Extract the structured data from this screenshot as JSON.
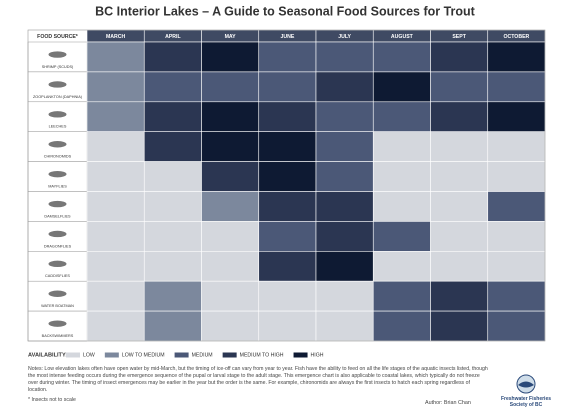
{
  "title": "BC Interior Lakes – A Guide to Seasonal Food Sources for Trout",
  "table": {
    "header": [
      "FOOD SOURCE*",
      "MARCH",
      "APRIL",
      "MAY",
      "JUNE",
      "JULY",
      "AUGUST",
      "SEPT",
      "OCTOBER"
    ],
    "rows": [
      {
        "label": "SHRIMP (SCUDS)",
        "cells": [
          "LOW TO MEDIUM",
          "MEDIUM TO HIGH",
          "HIGH",
          "MEDIUM",
          "MEDIUM",
          "MEDIUM",
          "MEDIUM TO HIGH",
          "HIGH"
        ]
      },
      {
        "label": "ZOOPLANKTON (DAPHNIA)",
        "cells": [
          "LOW TO MEDIUM",
          "MEDIUM",
          "MEDIUM",
          "MEDIUM",
          "MEDIUM TO HIGH",
          "HIGH",
          "MEDIUM",
          "MEDIUM"
        ]
      },
      {
        "label": "LEECHES",
        "cells": [
          "LOW TO MEDIUM",
          "MEDIUM TO HIGH",
          "HIGH",
          "MEDIUM TO HIGH",
          "MEDIUM",
          "MEDIUM",
          "MEDIUM TO HIGH",
          "HIGH"
        ]
      },
      {
        "label": "CHIRONOMIDS",
        "cells": [
          "LOW",
          "MEDIUM TO HIGH",
          "HIGH",
          "HIGH",
          "MEDIUM",
          "LOW",
          "LOW",
          "LOW"
        ]
      },
      {
        "label": "MAYFLIES",
        "cells": [
          "LOW",
          "LOW",
          "MEDIUM TO HIGH",
          "HIGH",
          "MEDIUM",
          "LOW",
          "LOW",
          "LOW"
        ]
      },
      {
        "label": "DAMSELFLIES",
        "cells": [
          "LOW",
          "LOW",
          "LOW TO MEDIUM",
          "MEDIUM TO HIGH",
          "MEDIUM TO HIGH",
          "LOW",
          "LOW",
          "MEDIUM"
        ]
      },
      {
        "label": "DRAGONFLIES",
        "cells": [
          "LOW",
          "LOW",
          "LOW",
          "MEDIUM",
          "MEDIUM TO HIGH",
          "MEDIUM",
          "LOW",
          "LOW"
        ]
      },
      {
        "label": "CADDISFLIES",
        "cells": [
          "LOW",
          "LOW",
          "LOW",
          "MEDIUM TO HIGH",
          "HIGH",
          "LOW",
          "LOW",
          "LOW"
        ]
      },
      {
        "label": "WATER BOATMAN",
        "cells": [
          "LOW",
          "LOW TO MEDIUM",
          "LOW",
          "LOW",
          "LOW",
          "MEDIUM",
          "MEDIUM TO HIGH",
          "MEDIUM"
        ]
      },
      {
        "label": "BACKSWIMMERS",
        "cells": [
          "LOW",
          "LOW TO MEDIUM",
          "LOW",
          "LOW",
          "LOW",
          "MEDIUM",
          "MEDIUM TO HIGH",
          "MEDIUM"
        ]
      }
    ]
  },
  "legend": {
    "label": "AVAILABILITY:",
    "levels": [
      {
        "label": "LOW",
        "color": "#d4d7dd"
      },
      {
        "label": "LOW TO MEDIUM",
        "color": "#7c889d"
      },
      {
        "label": "MEDIUM",
        "color": "#4b5877"
      },
      {
        "label": "MEDIUM TO HIGH",
        "color": "#2b3652"
      },
      {
        "label": "HIGH",
        "color": "#0e1a33"
      }
    ]
  },
  "notes": "Notes: Low elevation lakes often have open water by mid-March, but the timing of ice-off can vary from year to year. Fish have the ability to feed on all the life stages of the aquatic insects listed, though the most intense feeding occurs during the emergence sequence of the pupal or larval stage to the adult stage. This emergence chart is also applicable to coastal lakes, which typically do not freeze over during winter. The timing of insect emergences may be earlier in the year but the order is the same. For example, chironomids are always the first insects to hatch each spring regardless of location.",
  "footnote": "* Insects not to scale",
  "author": "Author: Brian Chan",
  "logo": [
    "Freshwater Fisheries",
    "Society of BC"
  ]
}
